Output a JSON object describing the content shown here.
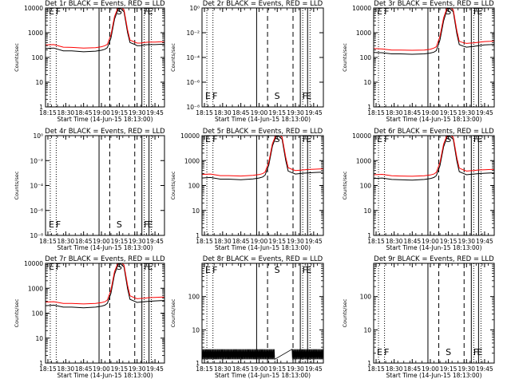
{
  "figure": {
    "xtick_labels": [
      "18:15",
      "18:30",
      "18:45",
      "19:00",
      "19:15",
      "19:30",
      "19:45"
    ],
    "xlabel": "Start Time (14-Jun-15 18:13:00)",
    "ylabel": "Counts/sec",
    "event_colors": {
      "black": "#000000",
      "red": "#ff0000"
    }
  },
  "chart_data": [
    {
      "type": "line",
      "title": "Det 1r BLACK = Events, RED = LLD",
      "xlabel": "Start Time (14-Jun-15 18:13:00)",
      "ylabel": "Counts/sec",
      "ylog": true,
      "xlim": [
        "18:13",
        "19:53"
      ],
      "ylim": [
        1,
        10000
      ],
      "ytick_labels": [
        "1",
        "10",
        "100",
        "1000",
        "10000"
      ],
      "markers": [
        {
          "label": "E",
          "x": "18:15"
        },
        {
          "label": "F",
          "x": "18:21"
        },
        {
          "label": "S",
          "x": "19:12"
        },
        {
          "label": "F",
          "x": "19:35"
        },
        {
          "label": "E",
          "x": "19:38"
        }
      ],
      "series": [
        {
          "name": "Events",
          "color": "#000000",
          "x": [
            "18:13",
            "18:20",
            "18:28",
            "18:35",
            "18:45",
            "18:55",
            "19:00",
            "19:03",
            "19:05",
            "19:08",
            "19:11",
            "19:14",
            "19:16",
            "19:19",
            "19:22",
            "19:24",
            "19:27",
            "19:30",
            "19:33",
            "19:36",
            "19:40",
            "19:45",
            "19:50",
            "19:53"
          ],
          "y": [
            230,
            240,
            185,
            185,
            170,
            180,
            195,
            215,
            250,
            600,
            3500,
            9000,
            9500,
            7000,
            1000,
            400,
            350,
            300,
            300,
            320,
            330,
            330,
            340,
            340
          ]
        },
        {
          "name": "LLD",
          "color": "#ff0000",
          "x": [
            "18:13",
            "18:20",
            "18:28",
            "18:35",
            "18:45",
            "18:55",
            "19:00",
            "19:03",
            "19:05",
            "19:08",
            "19:11",
            "19:14",
            "19:16",
            "19:19",
            "19:22",
            "19:24",
            "19:27",
            "19:30",
            "19:33",
            "19:36",
            "19:40",
            "19:45",
            "19:50",
            "19:53"
          ],
          "y": [
            320,
            330,
            260,
            255,
            240,
            250,
            270,
            300,
            340,
            800,
            4500,
            10500,
            11000,
            8500,
            1300,
            500,
            440,
            380,
            380,
            400,
            420,
            420,
            430,
            430
          ]
        }
      ]
    },
    {
      "type": "line",
      "title": "Det 2r BLACK = Events, RED = LLD",
      "xlabel": "Start Time (14-Jun-15 18:13:00)",
      "ylabel": "Counts/sec",
      "ylog": true,
      "xlim": [
        "18:13",
        "19:53"
      ],
      "ylim": [
        1e-08,
        1
      ],
      "ytick_labels": [
        "10⁰",
        "10⁻²",
        "10⁻⁴",
        "10⁻⁶",
        "10⁻⁸"
      ],
      "markers": [
        {
          "label": "E",
          "x": "18:15"
        },
        {
          "label": "F",
          "x": "18:21"
        },
        {
          "label": "S",
          "x": "19:12"
        },
        {
          "label": "F",
          "x": "19:35"
        },
        {
          "label": "E",
          "x": "19:38"
        }
      ],
      "series": []
    },
    {
      "type": "line",
      "title": "Det 3r BLACK = Events, RED = LLD",
      "xlabel": "Start Time (14-Jun-15 18:13:00)",
      "ylabel": "Counts/sec",
      "ylog": true,
      "xlim": [
        "18:13",
        "19:53"
      ],
      "ylim": [
        1,
        10000
      ],
      "ytick_labels": [
        "1",
        "10",
        "100",
        "1000",
        "10000"
      ],
      "markers": [
        {
          "label": "E",
          "x": "18:15"
        },
        {
          "label": "F",
          "x": "18:21"
        },
        {
          "label": "S",
          "x": "19:12"
        },
        {
          "label": "F",
          "x": "19:35"
        },
        {
          "label": "E",
          "x": "19:38"
        }
      ],
      "series": [
        {
          "name": "Events",
          "color": "#000000",
          "x": [
            "18:13",
            "18:20",
            "18:28",
            "18:35",
            "18:45",
            "18:55",
            "19:00",
            "19:03",
            "19:05",
            "19:08",
            "19:11",
            "19:14",
            "19:16",
            "19:19",
            "19:22",
            "19:24",
            "19:27",
            "19:30",
            "19:33",
            "19:36",
            "19:40",
            "19:45",
            "19:50",
            "19:53"
          ],
          "y": [
            160,
            155,
            140,
            140,
            135,
            140,
            150,
            165,
            190,
            500,
            3000,
            9000,
            9500,
            7000,
            900,
            330,
            290,
            260,
            270,
            280,
            300,
            320,
            330,
            340
          ]
        },
        {
          "name": "LLD",
          "color": "#ff0000",
          "x": [
            "18:13",
            "18:20",
            "18:28",
            "18:35",
            "18:45",
            "18:55",
            "19:00",
            "19:03",
            "19:05",
            "19:08",
            "19:11",
            "19:14",
            "19:16",
            "19:19",
            "19:22",
            "19:24",
            "19:27",
            "19:30",
            "19:33",
            "19:36",
            "19:40",
            "19:45",
            "19:50",
            "19:53"
          ],
          "y": [
            230,
            220,
            200,
            200,
            195,
            200,
            215,
            240,
            270,
            700,
            4000,
            10500,
            11000,
            8500,
            1200,
            450,
            400,
            370,
            380,
            390,
            410,
            440,
            450,
            460
          ]
        }
      ]
    },
    {
      "type": "line",
      "title": "Det 4r BLACK = Events, RED = LLD",
      "xlabel": "Start Time (14-Jun-15 18:13:00)",
      "ylabel": "Counts/sec",
      "ylog": true,
      "xlim": [
        "18:13",
        "19:53"
      ],
      "ylim": [
        1e-08,
        1
      ],
      "ytick_labels": [
        "10⁰",
        "10⁻²",
        "10⁻⁴",
        "10⁻⁶",
        "10⁻⁸"
      ],
      "markers": [
        {
          "label": "E",
          "x": "18:15"
        },
        {
          "label": "F",
          "x": "18:21"
        },
        {
          "label": "S",
          "x": "19:12"
        },
        {
          "label": "F",
          "x": "19:35"
        },
        {
          "label": "E",
          "x": "19:38"
        }
      ],
      "series": []
    },
    {
      "type": "line",
      "title": "Det 5r BLACK = Events, RED = LLD",
      "xlabel": "Start Time (14-Jun-15 18:13:00)",
      "ylabel": "Counts/sec",
      "ylog": true,
      "xlim": [
        "18:13",
        "19:53"
      ],
      "ylim": [
        1,
        10000
      ],
      "ytick_labels": [
        "1",
        "10",
        "100",
        "1000",
        "10000"
      ],
      "markers": [
        {
          "label": "E",
          "x": "18:15"
        },
        {
          "label": "F",
          "x": "18:21"
        },
        {
          "label": "S",
          "x": "19:12"
        },
        {
          "label": "F",
          "x": "19:35"
        },
        {
          "label": "E",
          "x": "19:38"
        }
      ],
      "series": [
        {
          "name": "Events",
          "color": "#000000",
          "x": [
            "18:13",
            "18:20",
            "18:28",
            "18:35",
            "18:45",
            "18:55",
            "19:00",
            "19:03",
            "19:05",
            "19:08",
            "19:11",
            "19:14",
            "19:16",
            "19:19",
            "19:22",
            "19:24",
            "19:27",
            "19:30",
            "19:33",
            "19:36",
            "19:40",
            "19:45",
            "19:50",
            "19:53"
          ],
          "y": [
            200,
            210,
            180,
            180,
            170,
            185,
            200,
            220,
            260,
            650,
            3800,
            9200,
            9600,
            7200,
            1000,
            380,
            330,
            290,
            300,
            310,
            320,
            330,
            340,
            340
          ]
        },
        {
          "name": "LLD",
          "color": "#ff0000",
          "x": [
            "18:13",
            "18:20",
            "18:28",
            "18:35",
            "18:45",
            "18:55",
            "19:00",
            "19:03",
            "19:05",
            "19:08",
            "19:11",
            "19:14",
            "19:16",
            "19:19",
            "19:22",
            "19:24",
            "19:27",
            "19:30",
            "19:33",
            "19:36",
            "19:40",
            "19:45",
            "19:50",
            "19:53"
          ],
          "y": [
            280,
            290,
            250,
            250,
            240,
            255,
            275,
            300,
            350,
            850,
            4800,
            10800,
            11200,
            8800,
            1350,
            520,
            450,
            400,
            410,
            420,
            440,
            450,
            460,
            460
          ]
        }
      ]
    },
    {
      "type": "line",
      "title": "Det 6r BLACK = Events, RED = LLD",
      "xlabel": "Start Time (14-Jun-15 18:13:00)",
      "ylabel": "Counts/sec",
      "ylog": true,
      "xlim": [
        "18:13",
        "19:53"
      ],
      "ylim": [
        1,
        10000
      ],
      "ytick_labels": [
        "1",
        "10",
        "100",
        "1000",
        "10000"
      ],
      "markers": [
        {
          "label": "E",
          "x": "18:15"
        },
        {
          "label": "F",
          "x": "18:21"
        },
        {
          "label": "S",
          "x": "19:12"
        },
        {
          "label": "F",
          "x": "19:35"
        },
        {
          "label": "E",
          "x": "19:38"
        }
      ],
      "series": [
        {
          "name": "Events",
          "color": "#000000",
          "x": [
            "18:13",
            "18:20",
            "18:28",
            "18:35",
            "18:45",
            "18:55",
            "19:00",
            "19:03",
            "19:05",
            "19:08",
            "19:11",
            "19:14",
            "19:16",
            "19:19",
            "19:22",
            "19:24",
            "19:27",
            "19:30",
            "19:33",
            "19:36",
            "19:40",
            "19:45",
            "19:50",
            "19:53"
          ],
          "y": [
            190,
            200,
            175,
            170,
            165,
            175,
            190,
            210,
            250,
            620,
            3600,
            9100,
            9500,
            7100,
            950,
            360,
            310,
            270,
            280,
            290,
            300,
            310,
            320,
            320
          ]
        },
        {
          "name": "LLD",
          "color": "#ff0000",
          "x": [
            "18:13",
            "18:20",
            "18:28",
            "18:35",
            "18:45",
            "18:55",
            "19:00",
            "19:03",
            "19:05",
            "19:08",
            "19:11",
            "19:14",
            "19:16",
            "19:19",
            "19:22",
            "19:24",
            "19:27",
            "19:30",
            "19:33",
            "19:36",
            "19:40",
            "19:45",
            "19:50",
            "19:53"
          ],
          "y": [
            270,
            280,
            245,
            240,
            235,
            245,
            265,
            290,
            340,
            820,
            4600,
            10600,
            11000,
            8600,
            1300,
            500,
            430,
            380,
            390,
            400,
            420,
            430,
            440,
            440
          ]
        }
      ]
    },
    {
      "type": "line",
      "title": "Det 7r BLACK = Events, RED = LLD",
      "xlabel": "Start Time (14-Jun-15 18:13:00)",
      "ylabel": "Counts/sec",
      "ylog": true,
      "xlim": [
        "18:13",
        "19:53"
      ],
      "ylim": [
        1,
        10000
      ],
      "ytick_labels": [
        "1",
        "10",
        "100",
        "1000",
        "10000"
      ],
      "markers": [
        {
          "label": "E",
          "x": "18:15"
        },
        {
          "label": "F",
          "x": "18:21"
        },
        {
          "label": "S",
          "x": "19:12"
        },
        {
          "label": "F",
          "x": "19:35"
        },
        {
          "label": "E",
          "x": "19:38"
        }
      ],
      "series": [
        {
          "name": "Events",
          "color": "#000000",
          "x": [
            "18:13",
            "18:20",
            "18:28",
            "18:35",
            "18:45",
            "18:55",
            "19:00",
            "19:03",
            "19:05",
            "19:08",
            "19:11",
            "19:14",
            "19:16",
            "19:19",
            "19:22",
            "19:24",
            "19:27",
            "19:30",
            "19:33",
            "19:36",
            "19:40",
            "19:45",
            "19:50",
            "19:53"
          ],
          "y": [
            200,
            210,
            175,
            175,
            165,
            175,
            190,
            210,
            250,
            620,
            3600,
            9100,
            9500,
            7100,
            950,
            360,
            310,
            270,
            280,
            290,
            300,
            310,
            320,
            320
          ]
        },
        {
          "name": "LLD",
          "color": "#ff0000",
          "x": [
            "18:13",
            "18:20",
            "18:28",
            "18:35",
            "18:45",
            "18:55",
            "19:00",
            "19:03",
            "19:05",
            "19:08",
            "19:11",
            "19:14",
            "19:16",
            "19:19",
            "19:22",
            "19:24",
            "19:27",
            "19:30",
            "19:33",
            "19:36",
            "19:40",
            "19:45",
            "19:50",
            "19:53"
          ],
          "y": [
            280,
            290,
            245,
            245,
            235,
            245,
            265,
            290,
            340,
            820,
            4600,
            10600,
            11000,
            8600,
            1300,
            500,
            430,
            380,
            390,
            400,
            420,
            430,
            440,
            440
          ]
        }
      ]
    },
    {
      "type": "line",
      "title": "Det 8r BLACK = Events, RED = LLD",
      "xlabel": "Start Time (14-Jun-15 18:13:00)",
      "ylabel": "Counts/sec",
      "ylog": true,
      "xlim": [
        "18:13",
        "19:53"
      ],
      "ylim": [
        1,
        1000
      ],
      "ytick_labels": [
        "1",
        "10",
        "100"
      ],
      "markers": [
        {
          "label": "E",
          "x": "18:15"
        },
        {
          "label": "F",
          "x": "18:21"
        },
        {
          "label": "S",
          "x": "19:12"
        },
        {
          "label": "F",
          "x": "19:35"
        },
        {
          "label": "E",
          "x": "19:38"
        }
      ],
      "noise": {
        "from": "18:13",
        "to": "19:53",
        "gap_from": "19:13",
        "gap_to": "19:27",
        "low": 1.3,
        "high": 2.6
      },
      "series": []
    },
    {
      "type": "line",
      "title": "Det 9r BLACK = Events, RED = LLD",
      "xlabel": "Start Time (14-Jun-15 18:13:00)",
      "ylabel": "Counts/sec",
      "ylog": true,
      "xlim": [
        "18:13",
        "19:53"
      ],
      "ylim": [
        1,
        1000
      ],
      "ytick_labels": [
        "1",
        "10",
        "100"
      ],
      "markers": [
        {
          "label": "E",
          "x": "18:15"
        },
        {
          "label": "F",
          "x": "18:21"
        },
        {
          "label": "S",
          "x": "19:12"
        },
        {
          "label": "F",
          "x": "19:35"
        },
        {
          "label": "E",
          "x": "19:38"
        }
      ],
      "series": []
    }
  ]
}
